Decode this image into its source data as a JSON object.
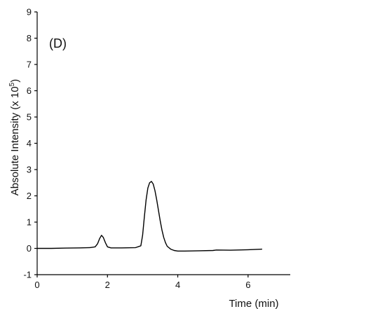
{
  "chart_data": {
    "type": "line",
    "panel_label": "(D)",
    "title": "",
    "xlabel": "Time (min)",
    "ylabel_main": "Absolute Intensity (x 10",
    "ylabel_exp": "5",
    "ylabel_close": ")",
    "xlim": [
      0,
      7.2
    ],
    "ylim": [
      -1,
      9
    ],
    "x_ticks": [
      0,
      2,
      4,
      6
    ],
    "x_tick_labels": [
      "0",
      "2",
      "4",
      "6"
    ],
    "y_ticks": [
      -1,
      0,
      1,
      2,
      3,
      4,
      5,
      6,
      7,
      8,
      9
    ],
    "y_tick_labels": [
      "-1",
      "0",
      "1",
      "2",
      "3",
      "4",
      "5",
      "6",
      "7",
      "8",
      "9"
    ],
    "grid": false,
    "series": [
      {
        "color": "#000000",
        "x": [
          0.0,
          0.4,
          0.8,
          1.2,
          1.5,
          1.65,
          1.72,
          1.78,
          1.83,
          1.88,
          1.94,
          2.0,
          2.1,
          2.4,
          2.8,
          2.95,
          3.0,
          3.05,
          3.1,
          3.15,
          3.2,
          3.25,
          3.3,
          3.35,
          3.4,
          3.45,
          3.5,
          3.55,
          3.6,
          3.65,
          3.7,
          3.8,
          3.9,
          4.0,
          4.2,
          4.6,
          5.0,
          5.1,
          5.5,
          6.0,
          6.4
        ],
        "y": [
          0.0,
          0.0,
          0.01,
          0.02,
          0.03,
          0.06,
          0.18,
          0.38,
          0.5,
          0.42,
          0.22,
          0.06,
          0.02,
          0.02,
          0.03,
          0.1,
          0.5,
          1.2,
          1.85,
          2.3,
          2.5,
          2.55,
          2.45,
          2.2,
          1.85,
          1.45,
          1.05,
          0.7,
          0.42,
          0.22,
          0.08,
          -0.03,
          -0.08,
          -0.1,
          -0.1,
          -0.09,
          -0.08,
          -0.06,
          -0.07,
          -0.05,
          -0.03
        ]
      }
    ]
  }
}
